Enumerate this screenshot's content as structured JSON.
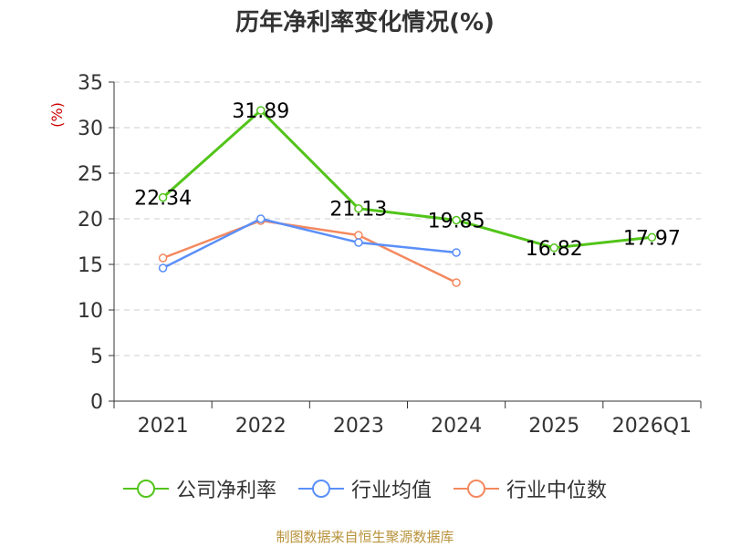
{
  "chart_data": {
    "type": "line",
    "title": "历年净利率变化情况(%)",
    "ylabel": "(%)",
    "xlabel": "",
    "categories": [
      "2021",
      "2022",
      "2023",
      "2024",
      "2025",
      "2026Q1"
    ],
    "ylim": [
      0,
      35
    ],
    "yticks": [
      0,
      5,
      10,
      15,
      20,
      25,
      30,
      35
    ],
    "grid": "horizontal dashed",
    "legend_position": "bottom",
    "series": [
      {
        "name": "公司净利率",
        "color": "#52c41a",
        "values": [
          22.34,
          31.89,
          21.13,
          19.85,
          16.82,
          17.97
        ],
        "labels": [
          "22.34",
          "31.89",
          "21.13",
          "19.85",
          "16.82",
          "17.97"
        ]
      },
      {
        "name": "行业均值",
        "color": "#5b8ff9",
        "values": [
          14.6,
          20.0,
          17.4,
          16.3,
          null,
          null
        ]
      },
      {
        "name": "行业中位数",
        "color": "#f4895f",
        "values": [
          15.7,
          19.8,
          18.2,
          13.0,
          null,
          null
        ]
      }
    ]
  },
  "source": "制图数据来自恒生聚源数据库"
}
